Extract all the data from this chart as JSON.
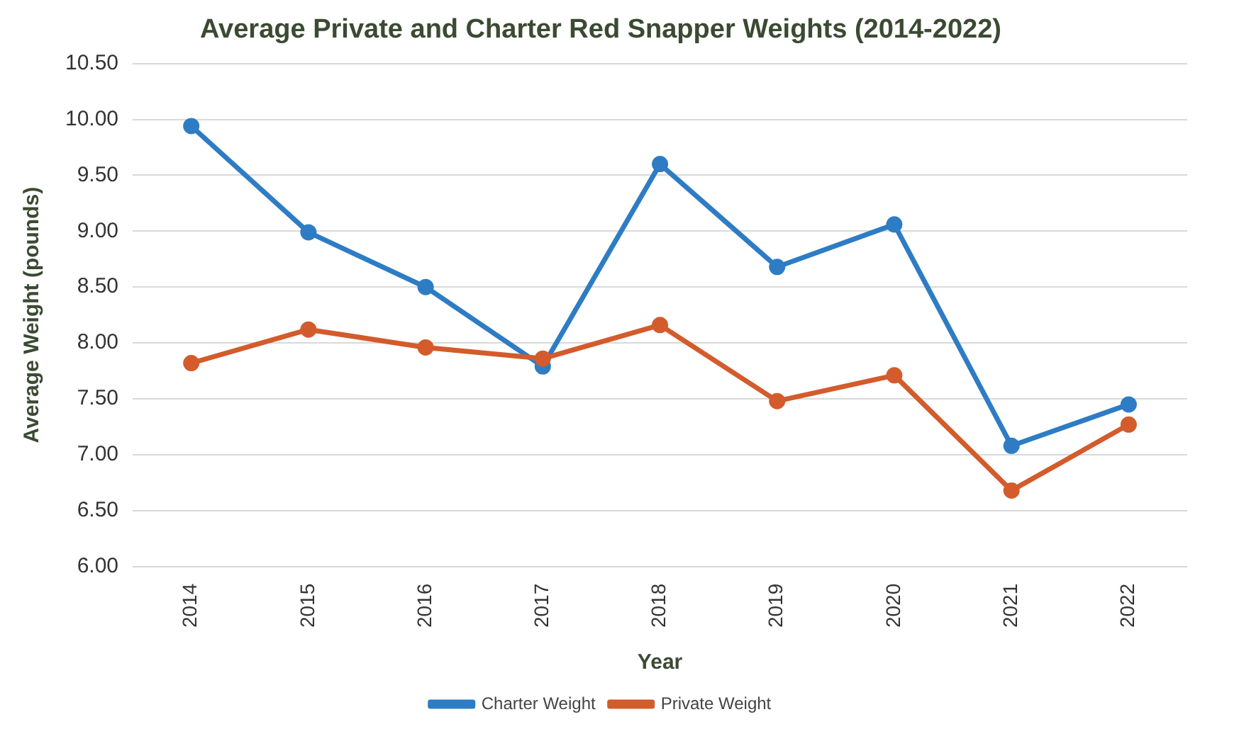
{
  "chart_data": {
    "type": "line",
    "title": "Average Private and Charter Red Snapper Weights (2014-2022)",
    "xlabel": "Year",
    "ylabel": "Average Weight (pounds)",
    "categories": [
      "2014",
      "2015",
      "2016",
      "2017",
      "2018",
      "2019",
      "2020",
      "2021",
      "2022"
    ],
    "series": [
      {
        "name": "Charter Weight",
        "color": "#2e7cc4",
        "values": [
          9.94,
          8.99,
          8.5,
          7.79,
          9.6,
          8.68,
          9.06,
          7.08,
          7.45
        ]
      },
      {
        "name": "Private Weight",
        "color": "#d35b2c",
        "values": [
          7.82,
          8.12,
          7.96,
          7.86,
          8.16,
          7.48,
          7.71,
          6.68,
          7.27
        ]
      }
    ],
    "ylim": [
      6,
      10.5
    ],
    "yticks": [
      {
        "value": 6,
        "label": "6.00"
      },
      {
        "value": 6.5,
        "label": "6.50"
      },
      {
        "value": 7,
        "label": "7.00"
      },
      {
        "value": 7.5,
        "label": "7.50"
      },
      {
        "value": 8,
        "label": "8.00"
      },
      {
        "value": 8.5,
        "label": "8.50"
      },
      {
        "value": 9,
        "label": "9.00"
      },
      {
        "value": 9.5,
        "label": "9.50"
      },
      {
        "value": 10,
        "label": "10.00"
      },
      {
        "value": 10.5,
        "label": "10.50"
      }
    ],
    "grid": "y",
    "legend": "bottom",
    "marker": "circle",
    "line_style": "solid"
  }
}
